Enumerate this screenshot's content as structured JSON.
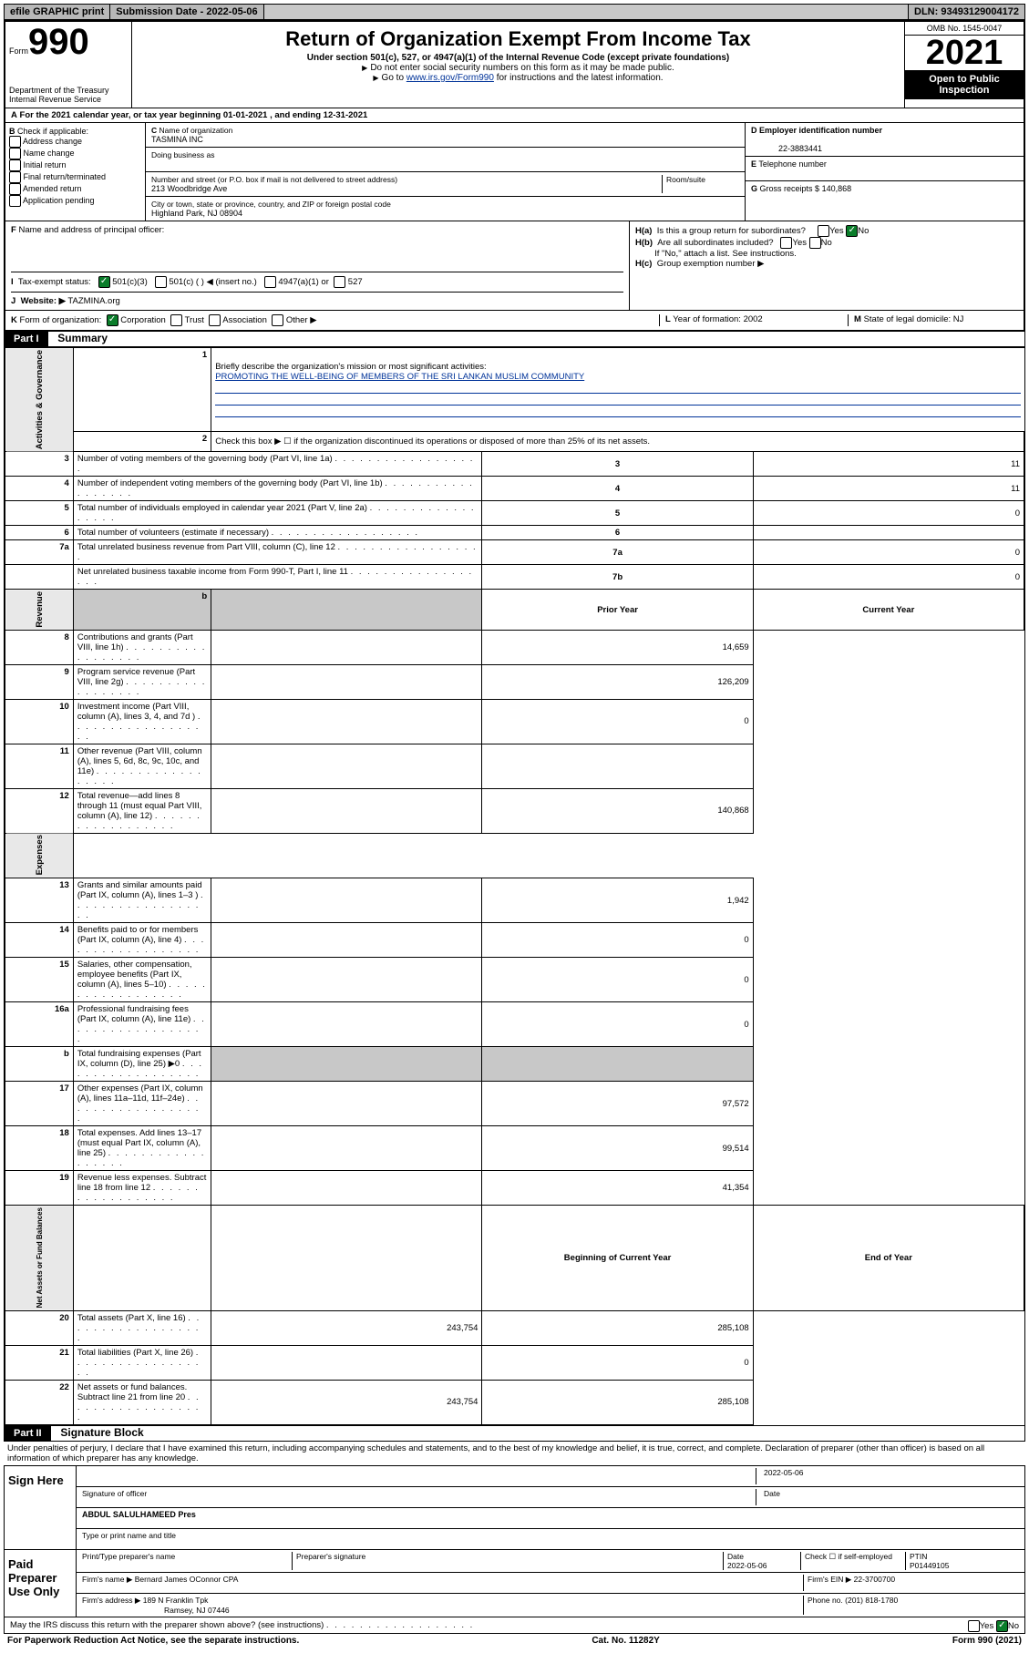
{
  "header": {
    "efile": "efile GRAPHIC print",
    "subdate_label": "Submission Date - ",
    "subdate": "2022-05-06",
    "dln_label": "DLN: ",
    "dln": "93493129004172"
  },
  "form": {
    "form_prefix": "Form",
    "form_num": "990",
    "dept": "Department of the Treasury",
    "irs": "Internal Revenue Service",
    "title": "Return of Organization Exempt From Income Tax",
    "subtitle": "Under section 501(c), 527, or 4947(a)(1) of the Internal Revenue Code (except private foundations)",
    "note1": "Do not enter social security numbers on this form as it may be made public.",
    "note2_pre": "Go to ",
    "note2_link": "www.irs.gov/Form990",
    "note2_post": " for instructions and the latest information.",
    "omb": "OMB No. 1545-0047",
    "year": "2021",
    "open": "Open to Public Inspection"
  },
  "a_line": "For the 2021 calendar year, or tax year beginning 01-01-2021    , and ending 12-31-2021",
  "b": {
    "label": "Check if applicable:",
    "opts": [
      "Address change",
      "Name change",
      "Initial return",
      "Final return/terminated",
      "Amended return",
      "Application pending"
    ]
  },
  "c": {
    "name_label": "Name of organization",
    "name": "TASMINA INC",
    "dba_label": "Doing business as",
    "street_label": "Number and street (or P.O. box if mail is not delivered to street address)",
    "room_label": "Room/suite",
    "street": "213 Woodbridge Ave",
    "city_label": "City or town, state or province, country, and ZIP or foreign postal code",
    "city": "Highland Park, NJ  08904"
  },
  "d": {
    "label": "Employer identification number",
    "val": "22-3883441"
  },
  "e": {
    "label": "Telephone number"
  },
  "g": {
    "label": "Gross receipts $ ",
    "val": "140,868"
  },
  "f_label": "Name and address of principal officer:",
  "h": {
    "ha": "Is this a group return for subordinates?",
    "hb": "Are all subordinates included?",
    "hb_note": "If \"No,\" attach a list. See instructions.",
    "hc": "Group exemption number ▶"
  },
  "i": {
    "label": "Tax-exempt status:",
    "opts": [
      "501(c)(3)",
      "501(c) (  ) ◀ (insert no.)",
      "4947(a)(1) or",
      "527"
    ]
  },
  "j": {
    "label": "Website: ▶",
    "val": "TAZMINA.org"
  },
  "k": {
    "label": "Form of organization:",
    "opts": [
      "Corporation",
      "Trust",
      "Association",
      "Other ▶"
    ]
  },
  "l": {
    "label": "Year of formation:",
    "val": "2002"
  },
  "m": {
    "label": "State of legal domicile:",
    "val": "NJ"
  },
  "part1": {
    "label": "Part I",
    "title": "Summary",
    "mission_label": "Briefly describe the organization's mission or most significant activities:",
    "mission": "PROMOTING THE WELL-BEING OF MEMBERS OF THE SRI LANKAN MUSLIM COMMUNITY",
    "check2": "Check this box ▶ ☐  if the organization discontinued its operations or disposed of more than 25% of its net assets.",
    "side_labels": [
      "Activities & Governance",
      "Revenue",
      "Expenses",
      "Net Assets or Fund Balances"
    ],
    "col_prior": "Prior Year",
    "col_current": "Current Year",
    "col_begin": "Beginning of Current Year",
    "col_end": "End of Year",
    "rows_gov": [
      {
        "n": "3",
        "d": "Number of voting members of the governing body (Part VI, line 1a)",
        "c": "3",
        "v": "11"
      },
      {
        "n": "4",
        "d": "Number of independent voting members of the governing body (Part VI, line 1b)",
        "c": "4",
        "v": "11"
      },
      {
        "n": "5",
        "d": "Total number of individuals employed in calendar year 2021 (Part V, line 2a)",
        "c": "5",
        "v": "0"
      },
      {
        "n": "6",
        "d": "Total number of volunteers (estimate if necessary)",
        "c": "6",
        "v": ""
      },
      {
        "n": "7a",
        "d": "Total unrelated business revenue from Part VIII, column (C), line 12",
        "c": "7a",
        "v": "0"
      },
      {
        "n": "",
        "d": "Net unrelated business taxable income from Form 990-T, Part I, line 11",
        "c": "7b",
        "v": "0"
      }
    ],
    "rows_rev": [
      {
        "n": "8",
        "d": "Contributions and grants (Part VIII, line 1h)",
        "p": "",
        "c": "14,659"
      },
      {
        "n": "9",
        "d": "Program service revenue (Part VIII, line 2g)",
        "p": "",
        "c": "126,209"
      },
      {
        "n": "10",
        "d": "Investment income (Part VIII, column (A), lines 3, 4, and 7d )",
        "p": "",
        "c": "0"
      },
      {
        "n": "11",
        "d": "Other revenue (Part VIII, column (A), lines 5, 6d, 8c, 9c, 10c, and 11e)",
        "p": "",
        "c": ""
      },
      {
        "n": "12",
        "d": "Total revenue—add lines 8 through 11 (must equal Part VIII, column (A), line 12)",
        "p": "",
        "c": "140,868"
      }
    ],
    "rows_exp": [
      {
        "n": "13",
        "d": "Grants and similar amounts paid (Part IX, column (A), lines 1–3 )",
        "p": "",
        "c": "1,942"
      },
      {
        "n": "14",
        "d": "Benefits paid to or for members (Part IX, column (A), line 4)",
        "p": "",
        "c": "0"
      },
      {
        "n": "15",
        "d": "Salaries, other compensation, employee benefits (Part IX, column (A), lines 5–10)",
        "p": "",
        "c": "0"
      },
      {
        "n": "16a",
        "d": "Professional fundraising fees (Part IX, column (A), line 11e)",
        "p": "",
        "c": "0"
      },
      {
        "n": "b",
        "d": "Total fundraising expenses (Part IX, column (D), line 25) ▶0",
        "p": "shaded",
        "c": "shaded"
      },
      {
        "n": "17",
        "d": "Other expenses (Part IX, column (A), lines 11a–11d, 11f–24e)",
        "p": "",
        "c": "97,572"
      },
      {
        "n": "18",
        "d": "Total expenses. Add lines 13–17 (must equal Part IX, column (A), line 25)",
        "p": "",
        "c": "99,514"
      },
      {
        "n": "19",
        "d": "Revenue less expenses. Subtract line 18 from line 12",
        "p": "",
        "c": "41,354"
      }
    ],
    "rows_net": [
      {
        "n": "20",
        "d": "Total assets (Part X, line 16)",
        "p": "243,754",
        "c": "285,108"
      },
      {
        "n": "21",
        "d": "Total liabilities (Part X, line 26)",
        "p": "",
        "c": "0"
      },
      {
        "n": "22",
        "d": "Net assets or fund balances. Subtract line 21 from line 20",
        "p": "243,754",
        "c": "285,108"
      }
    ]
  },
  "part2": {
    "label": "Part II",
    "title": "Signature Block",
    "penalty": "Under penalties of perjury, I declare that I have examined this return, including accompanying schedules and statements, and to the best of my knowledge and belief, it is true, correct, and complete. Declaration of preparer (other than officer) is based on all information of which preparer has any knowledge.",
    "sign_here": "Sign Here",
    "sig_officer": "Signature of officer",
    "sig_date": "2022-05-06",
    "date_label": "Date",
    "officer_name": "ABDUL SALULHAMEED Pres",
    "type_name": "Type or print name and title",
    "paid": "Paid Preparer Use Only",
    "prep_name_label": "Print/Type preparer's name",
    "prep_sig_label": "Preparer's signature",
    "prep_date_label": "Date",
    "prep_date": "2022-05-06",
    "check_self": "Check ☐ if self-employed",
    "ptin_label": "PTIN",
    "ptin": "P01449105",
    "firm_name_label": "Firm's name    ▶",
    "firm_name": "Bernard James OConnor CPA",
    "firm_ein_label": "Firm's EIN ▶",
    "firm_ein": "22-3700700",
    "firm_addr_label": "Firm's address ▶",
    "firm_addr1": "189 N Franklin Tpk",
    "firm_addr2": "Ramsey, NJ  07446",
    "phone_label": "Phone no.",
    "phone": "(201) 818-1780",
    "may_irs": "May the IRS discuss this return with the preparer shown above? (see instructions)"
  },
  "footer": {
    "left": "For Paperwork Reduction Act Notice, see the separate instructions.",
    "mid": "Cat. No. 11282Y",
    "right": "Form 990 (2021)"
  }
}
